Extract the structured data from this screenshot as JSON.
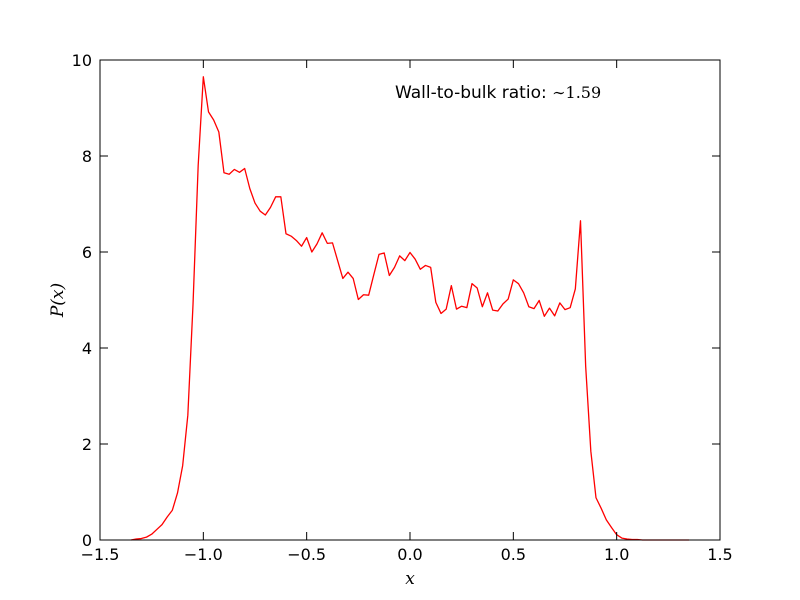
{
  "chart_data": {
    "type": "line",
    "xlabel": "x",
    "ylabel": "P(x)",
    "xlim": [
      -1.5,
      1.5
    ],
    "ylim": [
      0,
      10
    ],
    "xticks": [
      -1.5,
      -1.0,
      -0.5,
      0.0,
      0.5,
      1.0,
      1.5
    ],
    "xtick_labels": [
      "−1.5",
      "−1.0",
      "−0.5",
      "0.0",
      "0.5",
      "1.0",
      "1.5"
    ],
    "yticks": [
      0,
      2,
      4,
      6,
      8,
      10
    ],
    "ytick_labels": [
      "0",
      "2",
      "4",
      "6",
      "8",
      "10"
    ],
    "grid": false,
    "annotation": {
      "text": "Wall-to-bulk ratio: ",
      "value": "∼1.59"
    },
    "series": [
      {
        "color": "#ff0000",
        "x": [
          -1.35,
          -1.325,
          -1.3,
          -1.275,
          -1.25,
          -1.225,
          -1.2,
          -1.175,
          -1.15,
          -1.125,
          -1.1,
          -1.075,
          -1.05,
          -1.025,
          -1.0,
          -0.975,
          -0.95,
          -0.925,
          -0.9,
          -0.875,
          -0.85,
          -0.825,
          -0.8,
          -0.775,
          -0.75,
          -0.725,
          -0.7,
          -0.675,
          -0.65,
          -0.625,
          -0.6,
          -0.575,
          -0.55,
          -0.525,
          -0.5,
          -0.475,
          -0.45,
          -0.425,
          -0.4,
          -0.375,
          -0.35,
          -0.325,
          -0.3,
          -0.275,
          -0.25,
          -0.225,
          -0.2,
          -0.175,
          -0.15,
          -0.125,
          -0.1,
          -0.075,
          -0.05,
          -0.025,
          0.0,
          0.025,
          0.05,
          0.075,
          0.1,
          0.125,
          0.15,
          0.175,
          0.2,
          0.225,
          0.25,
          0.275,
          0.3,
          0.325,
          0.35,
          0.375,
          0.4,
          0.425,
          0.45,
          0.475,
          0.5,
          0.525,
          0.55,
          0.575,
          0.6,
          0.625,
          0.65,
          0.675,
          0.7,
          0.725,
          0.75,
          0.775,
          0.8,
          0.825,
          0.85,
          0.875,
          0.9,
          0.925,
          0.95,
          0.975,
          1.0,
          1.025,
          1.05,
          1.075,
          1.1,
          1.125,
          1.15,
          1.175,
          1.2,
          1.225,
          1.25,
          1.275,
          1.3,
          1.325,
          1.35
        ],
        "y": [
          0.0,
          0.02,
          0.03,
          0.06,
          0.12,
          0.22,
          0.32,
          0.48,
          0.62,
          0.98,
          1.55,
          2.6,
          4.9,
          7.8,
          9.65,
          8.92,
          8.75,
          8.5,
          7.65,
          7.62,
          7.72,
          7.66,
          7.74,
          7.32,
          7.02,
          6.85,
          6.77,
          6.93,
          7.15,
          7.15,
          6.38,
          6.33,
          6.24,
          6.12,
          6.3,
          6.0,
          6.17,
          6.4,
          6.18,
          6.19,
          5.82,
          5.45,
          5.58,
          5.45,
          5.01,
          5.11,
          5.1,
          5.53,
          5.95,
          5.98,
          5.51,
          5.68,
          5.92,
          5.82,
          5.99,
          5.85,
          5.64,
          5.72,
          5.68,
          4.95,
          4.72,
          4.81,
          5.3,
          4.81,
          4.87,
          4.84,
          5.34,
          5.25,
          4.86,
          5.15,
          4.79,
          4.77,
          4.92,
          5.02,
          5.42,
          5.34,
          5.15,
          4.86,
          4.82,
          4.99,
          4.66,
          4.83,
          4.67,
          4.94,
          4.8,
          4.84,
          5.23,
          6.65,
          3.62,
          1.85,
          0.88,
          0.66,
          0.42,
          0.26,
          0.11,
          0.04,
          0.02,
          0.01,
          0.01,
          0.0,
          0.0,
          0.0,
          0.0,
          0.0,
          0.0,
          0.0,
          0.0,
          0.0,
          0.0
        ]
      }
    ]
  }
}
